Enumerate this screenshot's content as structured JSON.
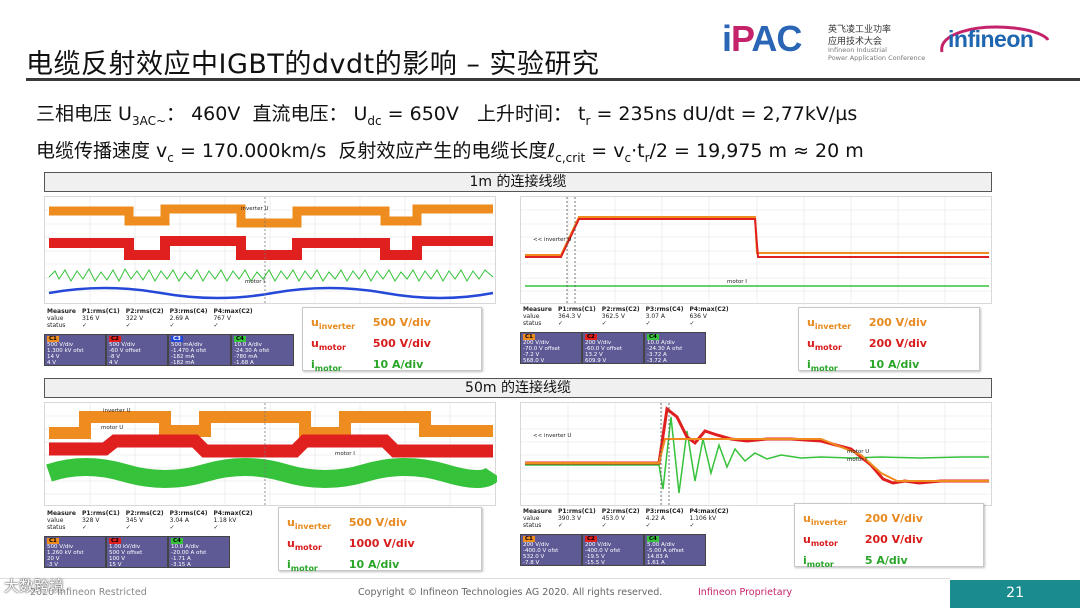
{
  "slide": {
    "title": "电缆反射效应中IGBT的dvdt的影响 – 实验研究",
    "page_number": "21",
    "footer_left": "2020 Infineon Restricted",
    "footer_copyright": "Copyright © Infineon Technologies AG 2020. All rights reserved.",
    "footer_proprietary": "Infineon  Proprietary",
    "watermark": "大数跨境"
  },
  "logos": {
    "ipac_letters": [
      "i",
      "P",
      "A",
      "C"
    ],
    "ipac_cn_1": "英飞凌工业功率",
    "ipac_cn_2": "应用技术大会",
    "ipac_en_1": "Infineon Industrial",
    "ipac_en_2": "Power Application Conference",
    "infineon": "infineon"
  },
  "params": {
    "line1": {
      "label_3phase": "三相电压 U",
      "sub_3phase": "3AC~",
      "val_3phase": "：  460V",
      "label_dc": "直流电压：  U",
      "sub_dc": "dc",
      "val_dc": " = 650V",
      "label_rise": "上升时间：  t",
      "sub_rise": "r",
      "val_rise": " = 235ns  dU/dt = 2,77kV/µs"
    },
    "line2": {
      "label_speed": "电缆传播速度 v",
      "sub_speed": "c",
      "val_speed": " = 170.000km/s",
      "label_len": "反射效应产生的电缆长度ℓ",
      "sub_len": "c,crit",
      "val_len_a": " = v",
      "sub_len_b": "c",
      "val_len_c": "·t",
      "sub_len_d": "r",
      "val_len_e": "/2 = 19,975 m ≈ 20 m"
    }
  },
  "sections": [
    {
      "header": "1m 的连接线缆",
      "scope_left": {
        "labels": [
          "inverter U",
          "motor I"
        ],
        "measure": {
          "head": [
            "Measure",
            "P1:rms(C1)",
            "P2:rms(C2)",
            "P3:rms(C4)",
            "P4:max(C2)"
          ],
          "value": [
            "value",
            "316 V",
            "322 V",
            "2.69 A",
            "767 V"
          ],
          "status": [
            "status",
            "✓",
            "✓",
            "✓",
            "✓"
          ]
        },
        "channels": [
          {
            "tag": "C1",
            "lines": [
              "500 V/div",
              "1.300 kV ofst",
              "14 V",
              "4 V"
            ]
          },
          {
            "tag": "C2",
            "lines": [
              "500 V/div",
              "-60 V offset",
              "-8 V",
              "4 V"
            ]
          },
          {
            "tag": "C3",
            "lines": [
              "500 mA/div",
              "-1.470 A ofst",
              "-182 mA",
              "-182 mA"
            ]
          },
          {
            "tag": "C4",
            "lines": [
              "10.0 A/div",
              "-24.30 A ofst",
              "-780 mA",
              "-1.68 A"
            ]
          }
        ]
      },
      "legend_left": [
        {
          "sym": "u",
          "sub": "inverter",
          "val": "500 V/div",
          "color": "#e8891e"
        },
        {
          "sym": "u",
          "sub": "motor",
          "val": "500 V/div",
          "color": "#d81c1c"
        },
        {
          "sym": "i",
          "sub": "motor",
          "val": "10 A/div",
          "color": "#2aa52a"
        }
      ],
      "scope_right": {
        "labels": [
          "<< inverter U",
          "motor I"
        ],
        "measure": {
          "head": [
            "Measure",
            "P1:rms(C1)",
            "P2:rms(C2)",
            "P3:rms(C4)",
            "P4:max(C2)"
          ],
          "value": [
            "value",
            "364.3 V",
            "362.5 V",
            "3.07 A",
            "636 V"
          ],
          "status": [
            "status",
            "✓",
            "✓",
            "✓",
            "✓"
          ]
        },
        "channels": [
          {
            "tag": "C1",
            "lines": [
              "200 V/div",
              "-70.0 V offset",
              "-7.2 V",
              "568.0 V"
            ]
          },
          {
            "tag": "C2",
            "lines": [
              "200 V/div",
              "-60.0 V offset",
              "13.2 V",
              "609.9 V"
            ]
          },
          {
            "tag": "C4",
            "lines": [
              "10.0 A/div",
              "-24.30 A ofst",
              "-3.72 A",
              "-3.72 A"
            ]
          }
        ]
      },
      "legend_right": [
        {
          "sym": "u",
          "sub": "inverter",
          "val": "200 V/div",
          "color": "#e8891e"
        },
        {
          "sym": "u",
          "sub": "motor",
          "val": "200 V/div",
          "color": "#d81c1c"
        },
        {
          "sym": "i",
          "sub": "motor",
          "val": "10 A/div",
          "color": "#2aa52a"
        }
      ]
    },
    {
      "header": "50m 的连接线缆",
      "scope_left": {
        "labels": [
          "inverter U",
          "motor U",
          "motor I"
        ],
        "measure": {
          "head": [
            "Measure",
            "P1:rms(C1)",
            "P2:rms(C2)",
            "P3:rms(C4)",
            "P4:max(C2)"
          ],
          "value": [
            "value",
            "328 V",
            "345 V",
            "3.04 A",
            "1.18 kV"
          ],
          "status": [
            "status",
            "✓",
            "✓",
            "✓",
            "✓"
          ]
        },
        "channels": [
          {
            "tag": "C1",
            "lines": [
              "500 V/div",
              "1.260 kV ofst",
              "20 V",
              "-3 V"
            ]
          },
          {
            "tag": "C2",
            "lines": [
              "1.00 kV/div",
              "500 V offset",
              "100 V",
              "15 V"
            ]
          },
          {
            "tag": "C4",
            "lines": [
              "10.0 A/div",
              "-20.00 A ofst",
              "-1.71 A",
              "-3.15 A"
            ]
          }
        ]
      },
      "legend_left": [
        {
          "sym": "u",
          "sub": "inverter",
          "val": "500 V/div",
          "color": "#e8891e"
        },
        {
          "sym": "u",
          "sub": "motor",
          "val": "1000 V/div",
          "color": "#d81c1c"
        },
        {
          "sym": "i",
          "sub": "motor",
          "val": "10 A/div",
          "color": "#2aa52a"
        }
      ],
      "scope_right": {
        "labels": [
          "<< inverter U",
          "motor U",
          "motor I"
        ],
        "measure": {
          "head": [
            "Measure",
            "P1:rms(C1)",
            "P2:rms(C2)",
            "P3:rms(C4)",
            "P4:max(C2)"
          ],
          "value": [
            "value",
            "390.3 V",
            "453.0 V",
            "4.22 A",
            "1.106 kV"
          ],
          "status": [
            "status",
            "✓",
            "✓",
            "✓",
            "✓"
          ]
        },
        "channels": [
          {
            "tag": "C1",
            "lines": [
              "200 V/div",
              "-400.0 V ofst",
              "532.0 V",
              "-7.8 V"
            ]
          },
          {
            "tag": "C2",
            "lines": [
              "200 V/div",
              "-400.0 V ofst",
              "-19.5 V",
              "-15.5 V"
            ]
          },
          {
            "tag": "C4",
            "lines": [
              "5.00 A/div",
              "-5.00 A offset",
              "14.83 A",
              "1.61 A"
            ]
          }
        ]
      },
      "legend_right": [
        {
          "sym": "u",
          "sub": "inverter",
          "val": "200 V/div",
          "color": "#e8891e"
        },
        {
          "sym": "u",
          "sub": "motor",
          "val": "200 V/div",
          "color": "#d81c1c"
        },
        {
          "sym": "i",
          "sub": "motor",
          "val": "5 A/div",
          "color": "#2aa52a"
        }
      ]
    }
  ],
  "colors": {
    "inverter": "#ee8c1f",
    "motor_u": "#e01f1f",
    "motor_i": "#36c23a",
    "motor_i_blue": "#2448d8",
    "accent_teal": "#1a8b8e",
    "accent_magenta": "#c4236a"
  }
}
